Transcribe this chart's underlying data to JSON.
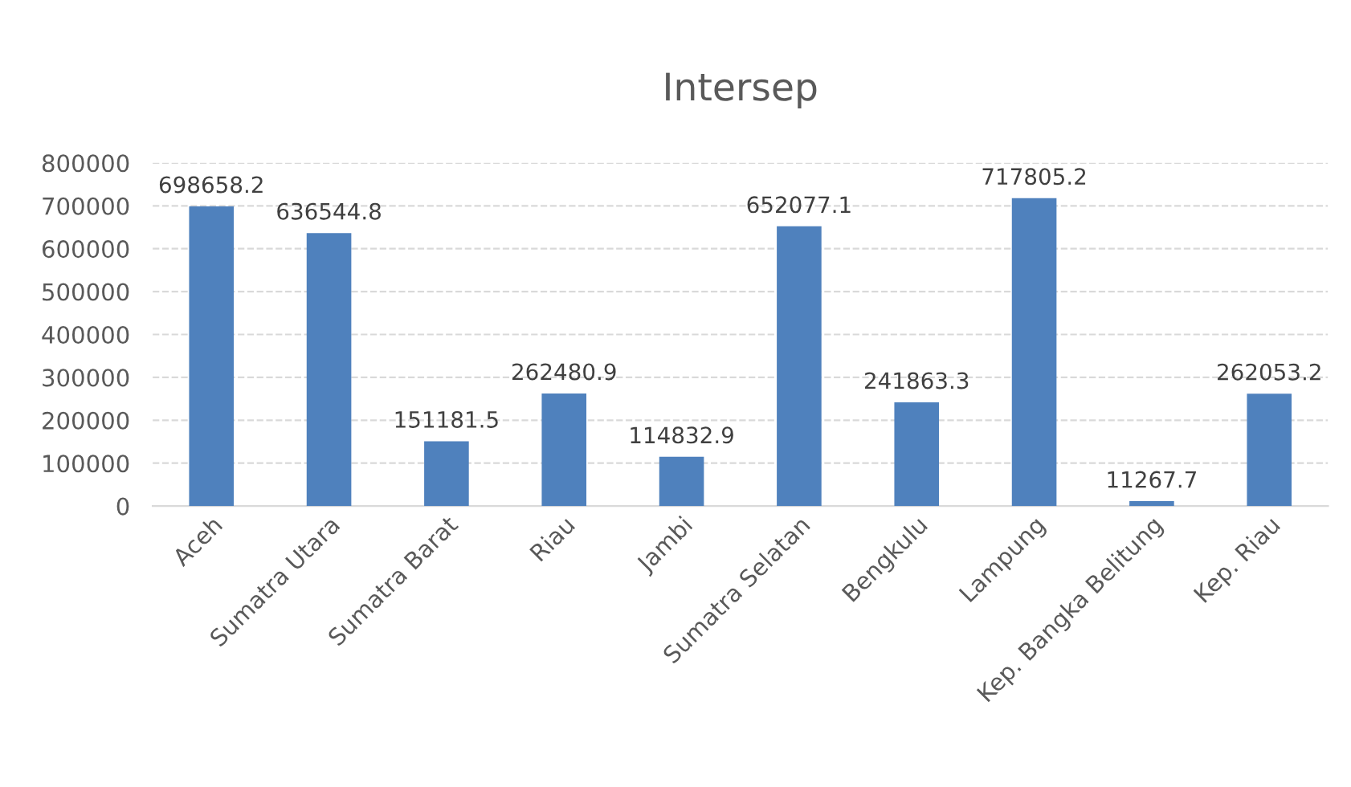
{
  "chart_data": {
    "type": "bar",
    "title": "Intersep",
    "categories": [
      "Aceh",
      "Sumatra Utara",
      "Sumatra Barat",
      "Riau",
      "Jambi",
      "Sumatra Selatan",
      "Bengkulu",
      "Lampung",
      "Kep. Bangka Belitung",
      "Kep. Riau"
    ],
    "values": [
      698658.2,
      636544.8,
      151181.5,
      262480.9,
      114832.9,
      652077.1,
      241863.3,
      717805.2,
      11267.7,
      262053.2
    ],
    "color": "#4f81bd",
    "ylim": [
      0,
      800000
    ],
    "yticks": [
      0,
      100000,
      200000,
      300000,
      400000,
      500000,
      600000,
      700000,
      800000
    ],
    "grid": "y",
    "data_labels": true
  }
}
